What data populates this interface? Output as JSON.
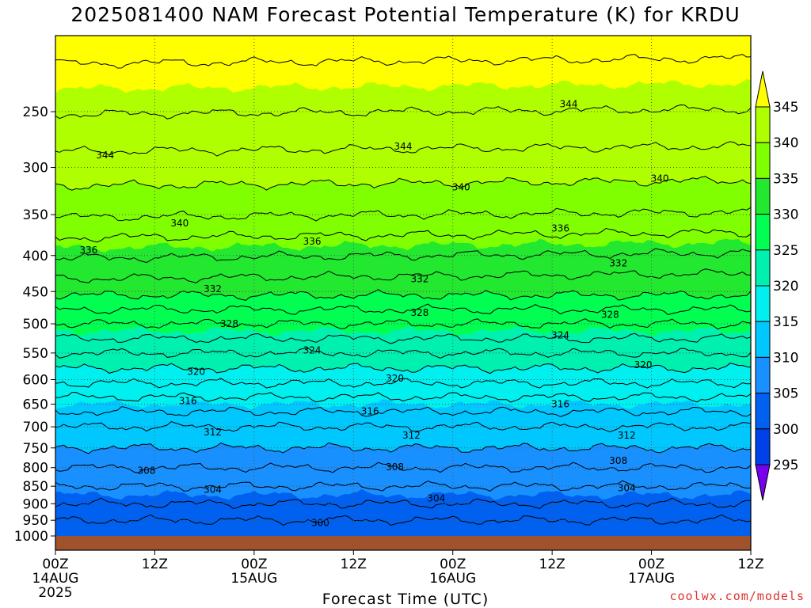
{
  "chart_data": {
    "type": "heatmap",
    "title": "2025081400 NAM Forecast Potential Temperature (K) for KRDU",
    "xlabel": "Forecast Time (UTC)",
    "ylabel": "",
    "y_scale": "log",
    "ylim": [
      1000,
      195
    ],
    "y_ticks": [
      250,
      300,
      350,
      400,
      450,
      500,
      550,
      600,
      650,
      700,
      750,
      800,
      850,
      900,
      950,
      1000
    ],
    "x_ticks": [
      {
        "label": "00Z",
        "sub": "14AUG",
        "year": "2025",
        "hour": 0
      },
      {
        "label": "12Z",
        "sub": "",
        "year": "",
        "hour": 12
      },
      {
        "label": "00Z",
        "sub": "15AUG",
        "year": "",
        "hour": 24
      },
      {
        "label": "12Z",
        "sub": "",
        "year": "",
        "hour": 36
      },
      {
        "label": "00Z",
        "sub": "16AUG",
        "year": "",
        "hour": 48
      },
      {
        "label": "12Z",
        "sub": "",
        "year": "",
        "hour": 60
      },
      {
        "label": "00Z",
        "sub": "17AUG",
        "year": "",
        "hour": 72
      },
      {
        "label": "12Z",
        "sub": "",
        "year": "",
        "hour": 84
      }
    ],
    "grid": true,
    "colorbar": {
      "levels": [
        295,
        300,
        305,
        310,
        315,
        320,
        325,
        330,
        335,
        340,
        345
      ],
      "labels": [
        "345",
        "340",
        "335",
        "330",
        "325",
        "320",
        "315",
        "310",
        "305",
        "300",
        "295"
      ],
      "colors": [
        "#7700ee",
        "#0000ff",
        "#0040e8",
        "#0060f0",
        "#1890ff",
        "#00c8ff",
        "#00f0f0",
        "#00f0b0",
        "#00ff50",
        "#22e830",
        "#80ff00",
        "#b0ff00",
        "#ffff00"
      ]
    },
    "profile": [
      {
        "p": 1000,
        "theta": 300.5
      },
      {
        "p": 950,
        "theta": 302
      },
      {
        "p": 900,
        "theta": 304
      },
      {
        "p": 850,
        "theta": 306
      },
      {
        "p": 800,
        "theta": 308
      },
      {
        "p": 750,
        "theta": 310
      },
      {
        "p": 700,
        "theta": 312
      },
      {
        "p": 650,
        "theta": 315
      },
      {
        "p": 600,
        "theta": 318.5
      },
      {
        "p": 550,
        "theta": 322
      },
      {
        "p": 500,
        "theta": 326
      },
      {
        "p": 450,
        "theta": 330.5
      },
      {
        "p": 400,
        "theta": 334
      },
      {
        "p": 350,
        "theta": 338
      },
      {
        "p": 300,
        "theta": 341
      },
      {
        "p": 250,
        "theta": 344
      },
      {
        "p": 195,
        "theta": 347
      }
    ],
    "contour_labels": [
      {
        "text": "344",
        "hour": 6,
        "p": 288
      },
      {
        "text": "344",
        "hour": 42,
        "p": 280
      },
      {
        "text": "344",
        "hour": 62,
        "p": 244
      },
      {
        "text": "340",
        "hour": 15,
        "p": 360
      },
      {
        "text": "340",
        "hour": 49,
        "p": 320
      },
      {
        "text": "340",
        "hour": 73,
        "p": 311
      },
      {
        "text": "336",
        "hour": 4,
        "p": 393
      },
      {
        "text": "336",
        "hour": 31,
        "p": 382
      },
      {
        "text": "336",
        "hour": 61,
        "p": 366
      },
      {
        "text": "332",
        "hour": 19,
        "p": 446
      },
      {
        "text": "332",
        "hour": 44,
        "p": 432
      },
      {
        "text": "332",
        "hour": 68,
        "p": 410
      },
      {
        "text": "328",
        "hour": 21,
        "p": 500
      },
      {
        "text": "328",
        "hour": 44,
        "p": 482
      },
      {
        "text": "328",
        "hour": 67,
        "p": 485
      },
      {
        "text": "324",
        "hour": 31,
        "p": 545
      },
      {
        "text": "324",
        "hour": 61,
        "p": 519
      },
      {
        "text": "320",
        "hour": 17,
        "p": 585
      },
      {
        "text": "320",
        "hour": 41,
        "p": 598
      },
      {
        "text": "320",
        "hour": 71,
        "p": 572
      },
      {
        "text": "316",
        "hour": 16,
        "p": 643
      },
      {
        "text": "316",
        "hour": 38,
        "p": 665
      },
      {
        "text": "316",
        "hour": 61,
        "p": 650
      },
      {
        "text": "312",
        "hour": 19,
        "p": 713
      },
      {
        "text": "312",
        "hour": 43,
        "p": 720
      },
      {
        "text": "312",
        "hour": 69,
        "p": 720
      },
      {
        "text": "308",
        "hour": 11,
        "p": 808
      },
      {
        "text": "308",
        "hour": 41,
        "p": 798
      },
      {
        "text": "308",
        "hour": 68,
        "p": 782
      },
      {
        "text": "304",
        "hour": 19,
        "p": 860
      },
      {
        "text": "304",
        "hour": 46,
        "p": 884
      },
      {
        "text": "304",
        "hour": 69,
        "p": 855
      },
      {
        "text": "300",
        "hour": 32,
        "p": 958
      }
    ]
  },
  "watermark": "coolwx.com/models"
}
